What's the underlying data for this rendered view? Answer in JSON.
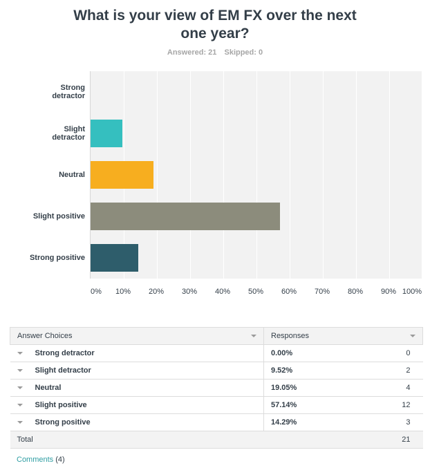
{
  "title_lines": [
    "What is your view of EM FX over the next",
    "one year?"
  ],
  "stats": {
    "answered": "Answered: 21",
    "skipped": "Skipped: 0"
  },
  "chart_data": {
    "type": "bar",
    "orientation": "horizontal",
    "categories": [
      "Strong detractor",
      "Slight detractor",
      "Neutral",
      "Slight positive",
      "Strong positive"
    ],
    "values": [
      0.0,
      9.52,
      19.05,
      57.14,
      14.29
    ],
    "colors": [
      "#2b7a78",
      "#35bfbf",
      "#f7ae1f",
      "#8c8c7c",
      "#2e5d6b"
    ],
    "xlim": [
      0,
      100
    ],
    "xticks": [
      "0%",
      "10%",
      "20%",
      "30%",
      "40%",
      "50%",
      "60%",
      "70%",
      "80%",
      "90%",
      "100%"
    ],
    "grid": true
  },
  "table": {
    "headers": {
      "choice": "Answer Choices",
      "responses": "Responses"
    },
    "rows": [
      {
        "choice": "Strong detractor",
        "pct": "0.00%",
        "count": "0"
      },
      {
        "choice": "Slight detractor",
        "pct": "9.52%",
        "count": "2"
      },
      {
        "choice": "Neutral",
        "pct": "19.05%",
        "count": "4"
      },
      {
        "choice": "Slight positive",
        "pct": "57.14%",
        "count": "12"
      },
      {
        "choice": "Strong positive",
        "pct": "14.29%",
        "count": "3"
      }
    ],
    "total": {
      "label": "Total",
      "count": "21"
    }
  },
  "comments": {
    "label": "Comments",
    "count": "(4)"
  }
}
